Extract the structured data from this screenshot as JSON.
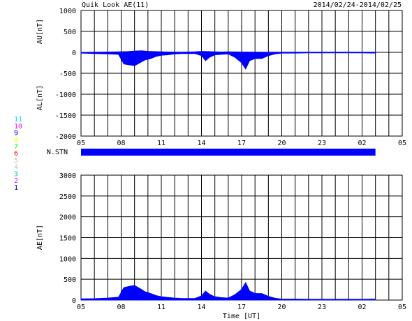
{
  "header": {
    "title": "Quik Look AE(11)",
    "date_range": "2014/02/24-2014/02/25"
  },
  "colors": {
    "fill": "#0000ff",
    "axis": "#000000",
    "grid": "#000000",
    "background": "#ffffff"
  },
  "station_legend": {
    "items": [
      {
        "label": "11",
        "color": "#00e0e0"
      },
      {
        "label": "10",
        "color": "#ff00ff"
      },
      {
        "label": "9",
        "color": "#0000ff"
      },
      {
        "label": "8",
        "color": "#ffff00"
      },
      {
        "label": "7",
        "color": "#00ff00"
      },
      {
        "label": "6",
        "color": "#ff0000"
      },
      {
        "label": "5",
        "color": "#c0c0c0"
      },
      {
        "label": "4",
        "color": "#c0c0c0"
      },
      {
        "label": "3",
        "color": "#00c0c0"
      },
      {
        "label": "2",
        "color": "#ff00ff"
      },
      {
        "label": "1",
        "color": "#0000c0"
      }
    ]
  },
  "stations_panel": {
    "label": "N.STN",
    "coverage": [
      0,
      22
    ]
  },
  "chart_data": [
    {
      "type": "area",
      "panel": "AU/AL",
      "xlabel": "",
      "xlim": [
        0,
        24
      ],
      "x_tick_labels": [
        "05",
        "08",
        "11",
        "14",
        "17",
        "20",
        "23",
        "02",
        "05"
      ],
      "ylim": [
        -2000,
        1000
      ],
      "y_ticks": [
        1000,
        500,
        0,
        -500,
        -1000,
        -1500,
        -2000
      ],
      "y_labels": [
        "AU[nT]",
        "AL[nT]"
      ],
      "grid": true,
      "series": [
        {
          "name": "AU",
          "x": [
            0,
            1,
            2,
            2.8,
            3.5,
            4,
            4.5,
            5,
            5.5,
            6,
            6.5,
            7,
            7.5,
            8,
            8.5,
            9,
            9.5,
            10,
            10.5,
            11,
            11.5,
            12,
            12.5,
            13,
            13.5,
            14,
            14.5,
            15,
            15.5,
            16,
            16.5,
            17,
            17.5,
            18,
            18.5,
            19,
            19.5,
            20,
            20.5,
            21,
            21.5,
            22
          ],
          "values": [
            0,
            5,
            10,
            15,
            20,
            30,
            40,
            25,
            20,
            15,
            10,
            8,
            5,
            10,
            15,
            25,
            20,
            15,
            10,
            15,
            12,
            10,
            8,
            8,
            6,
            5,
            5,
            5,
            5,
            5,
            5,
            5,
            5,
            5,
            5,
            5,
            5,
            5,
            5,
            5,
            5,
            5
          ]
        },
        {
          "name": "AL",
          "x": [
            0,
            1,
            2,
            2.8,
            3.2,
            3.6,
            4,
            4.4,
            4.8,
            5.2,
            5.6,
            6,
            6.5,
            7,
            7.5,
            8,
            8.5,
            9,
            9.3,
            9.6,
            10,
            10.5,
            11,
            11.5,
            12,
            12.3,
            12.6,
            13,
            13.5,
            14,
            14.5,
            15,
            16,
            17,
            18,
            19,
            20,
            21,
            22
          ],
          "values": [
            -20,
            -30,
            -40,
            -50,
            -280,
            -300,
            -320,
            -250,
            -180,
            -150,
            -100,
            -70,
            -60,
            -40,
            -30,
            -30,
            -30,
            -80,
            -200,
            -120,
            -60,
            -50,
            -40,
            -120,
            -250,
            -400,
            -200,
            -150,
            -150,
            -80,
            -40,
            -20,
            -20,
            -15,
            -15,
            -15,
            -15,
            -15,
            -20
          ]
        }
      ]
    },
    {
      "type": "area",
      "panel": "AE",
      "xlabel": "Time [UT]",
      "xlim": [
        0,
        24
      ],
      "x_tick_labels": [
        "05",
        "08",
        "11",
        "14",
        "17",
        "20",
        "23",
        "02",
        "05"
      ],
      "ylim": [
        0,
        3000
      ],
      "y_ticks": [
        3000,
        2500,
        2000,
        1500,
        1000,
        500,
        0
      ],
      "ylabel": "AE[nT]",
      "grid": true,
      "series": [
        {
          "name": "AE",
          "x": [
            0,
            1,
            2,
            2.8,
            3.2,
            3.6,
            4,
            4.4,
            4.8,
            5.2,
            5.6,
            6,
            6.5,
            7,
            7.5,
            8,
            8.5,
            9,
            9.3,
            9.6,
            10,
            10.5,
            11,
            11.5,
            12,
            12.3,
            12.6,
            13,
            13.5,
            14,
            14.5,
            15,
            16,
            17,
            18,
            19,
            20,
            21,
            22
          ],
          "values": [
            30,
            35,
            50,
            70,
            300,
            330,
            350,
            280,
            200,
            160,
            110,
            80,
            65,
            50,
            40,
            40,
            40,
            100,
            220,
            140,
            80,
            60,
            50,
            130,
            260,
            420,
            220,
            160,
            160,
            90,
            45,
            25,
            25,
            20,
            20,
            20,
            20,
            20,
            25
          ]
        }
      ]
    }
  ]
}
